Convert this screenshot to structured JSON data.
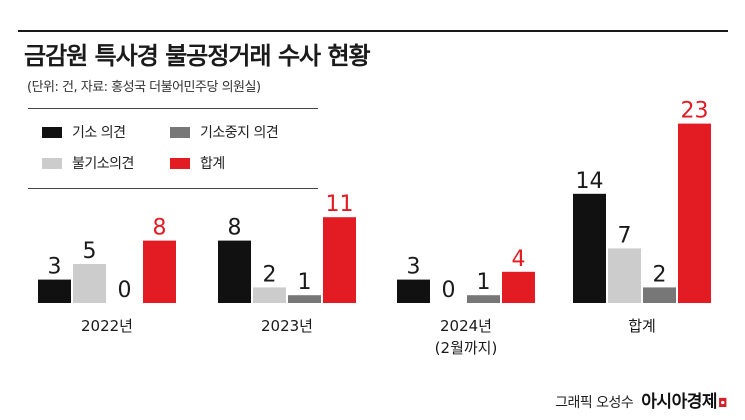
{
  "header": {
    "title": "금감원 특사경 불공정거래 수사 현황",
    "subtitle": "(단위: 건, 자료: 홍성국 더불어민주당 의원실)"
  },
  "credit": {
    "label": "그래픽 오성수",
    "brand": "아시아경제",
    "brand_mark": "◘"
  },
  "colors": {
    "series1": "#111111",
    "series2": "#777777",
    "series3": "#cccccc",
    "series4": "#e31b23",
    "highlight_text": "#e31b23",
    "text": "#1a1a1a"
  },
  "chart_data": {
    "type": "bar",
    "title": "금감원 특사경 불공정거래 수사 현황",
    "subtitle": "(단위: 건, 자료: 홍성국 더불어민주당 의원실)",
    "categories": [
      "2022년",
      "2023년",
      "2024년\n(2월까지)",
      "합계"
    ],
    "category_lines": [
      [
        "2022년"
      ],
      [
        "2023년"
      ],
      [
        "2024년",
        "(2월까지)"
      ],
      [
        "합계"
      ]
    ],
    "series": [
      {
        "name": "기소 의견",
        "values": [
          3,
          8,
          3,
          14
        ],
        "color": "#111111"
      },
      {
        "name": "불기소의견",
        "values": [
          5,
          2,
          0,
          7
        ],
        "color": "#cccccc"
      },
      {
        "name": "기소중지 의견",
        "values": [
          0,
          1,
          1,
          2
        ],
        "color": "#777777"
      },
      {
        "name": "합계",
        "values": [
          8,
          11,
          4,
          23
        ],
        "color": "#e31b23"
      }
    ],
    "legend": [
      {
        "name": "기소 의견",
        "color": "#111111"
      },
      {
        "name": "기소중지 의견",
        "color": "#777777"
      },
      {
        "name": "불기소의견",
        "color": "#cccccc"
      },
      {
        "name": "합계",
        "color": "#e31b23"
      }
    ],
    "legend_position": "top-left",
    "grid": false,
    "ylim": [
      0,
      23
    ]
  }
}
